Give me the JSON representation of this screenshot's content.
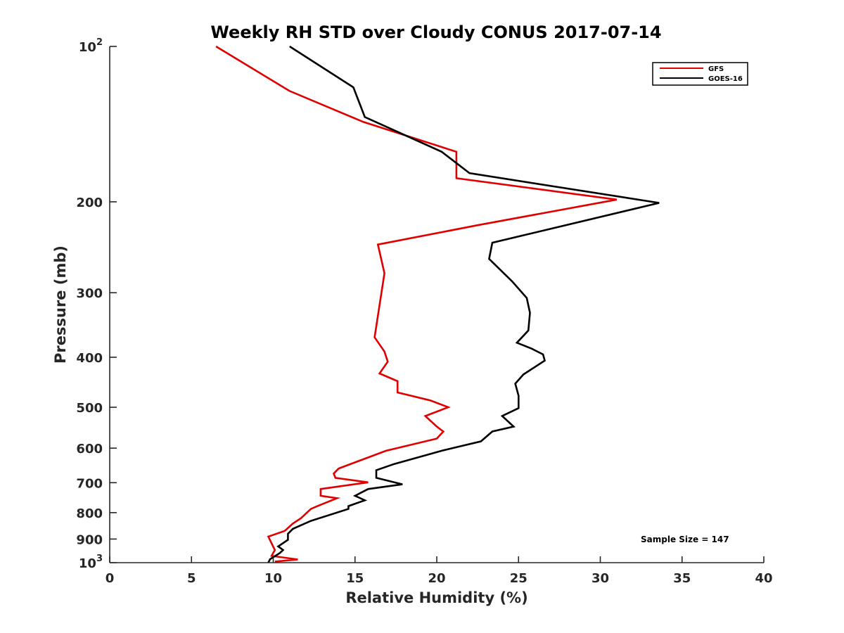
{
  "chart_data": {
    "type": "line",
    "title": "Weekly RH STD over Cloudy CONUS 2017-07-14",
    "xlabel": "Relative Humidity (%)",
    "ylabel": "Pressure (mb)",
    "xlim": [
      0,
      40
    ],
    "ylim": [
      100,
      1000
    ],
    "yscale": "log",
    "y_reversed": true,
    "xticks": [
      0,
      5,
      10,
      15,
      20,
      25,
      30,
      35,
      40
    ],
    "xtick_labels": [
      "0",
      "5",
      "10",
      "15",
      "20",
      "25",
      "30",
      "35",
      "40"
    ],
    "yticks": [
      {
        "value": 100,
        "base": "10",
        "exp": "2"
      },
      {
        "value": 200,
        "label": "200"
      },
      {
        "value": 300,
        "label": "300"
      },
      {
        "value": 400,
        "label": "400"
      },
      {
        "value": 500,
        "label": "500"
      },
      {
        "value": 600,
        "label": "600"
      },
      {
        "value": 700,
        "label": "700"
      },
      {
        "value": 800,
        "label": "800"
      },
      {
        "value": 900,
        "label": "900"
      },
      {
        "value": 1000,
        "base": "10",
        "exp": "3"
      }
    ],
    "grid": false,
    "legend_position": "top-right",
    "annotation": "Sample Size = 147",
    "series": [
      {
        "name": "GFS",
        "color": "#e00000",
        "points": [
          [
            6.5,
            100
          ],
          [
            11.0,
            122
          ],
          [
            15.5,
            140
          ],
          [
            21.2,
            160
          ],
          [
            21.2,
            180
          ],
          [
            31.0,
            198
          ],
          [
            22.5,
            222
          ],
          [
            16.4,
            242
          ],
          [
            16.8,
            275
          ],
          [
            16.2,
            366
          ],
          [
            16.8,
            390
          ],
          [
            17.0,
            408
          ],
          [
            16.5,
            430
          ],
          [
            17.6,
            445
          ],
          [
            17.6,
            468
          ],
          [
            19.6,
            485
          ],
          [
            20.7,
            500
          ],
          [
            19.3,
            520
          ],
          [
            20.0,
            545
          ],
          [
            20.4,
            557
          ],
          [
            20.0,
            575
          ],
          [
            16.9,
            607
          ],
          [
            14.0,
            657
          ],
          [
            13.7,
            672
          ],
          [
            13.8,
            685
          ],
          [
            15.8,
            699
          ],
          [
            12.9,
            720
          ],
          [
            12.9,
            742
          ],
          [
            13.9,
            750
          ],
          [
            12.7,
            777
          ],
          [
            12.3,
            787
          ],
          [
            11.7,
            820
          ],
          [
            11.2,
            840
          ],
          [
            10.7,
            868
          ],
          [
            9.7,
            890
          ],
          [
            10.1,
            945
          ],
          [
            9.9,
            970
          ],
          [
            10.3,
            974
          ],
          [
            11.5,
            986
          ],
          [
            10.1,
            995
          ]
        ]
      },
      {
        "name": "GOES-16",
        "color": "#000000",
        "points": [
          [
            11.0,
            100
          ],
          [
            14.9,
            120
          ],
          [
            15.6,
            137
          ],
          [
            20.3,
            160
          ],
          [
            22.0,
            176
          ],
          [
            33.6,
            201
          ],
          [
            23.4,
            240
          ],
          [
            23.2,
            258
          ],
          [
            24.6,
            285
          ],
          [
            25.5,
            307
          ],
          [
            25.7,
            328
          ],
          [
            25.6,
            355
          ],
          [
            24.9,
            375
          ],
          [
            25.8,
            385
          ],
          [
            26.5,
            395
          ],
          [
            26.6,
            406
          ],
          [
            25.3,
            432
          ],
          [
            24.8,
            450
          ],
          [
            25.0,
            475
          ],
          [
            25.0,
            502
          ],
          [
            24.0,
            520
          ],
          [
            24.7,
            545
          ],
          [
            23.4,
            557
          ],
          [
            22.7,
            582
          ],
          [
            20.4,
            606
          ],
          [
            17.4,
            644
          ],
          [
            16.3,
            662
          ],
          [
            16.3,
            685
          ],
          [
            17.9,
            705
          ],
          [
            15.8,
            720
          ],
          [
            15.0,
            742
          ],
          [
            15.6,
            757
          ],
          [
            14.6,
            777
          ],
          [
            14.6,
            787
          ],
          [
            12.3,
            830
          ],
          [
            11.2,
            860
          ],
          [
            10.9,
            879
          ],
          [
            10.9,
            903
          ],
          [
            10.3,
            930
          ],
          [
            10.6,
            945
          ],
          [
            10.4,
            958
          ],
          [
            9.8,
            985
          ],
          [
            9.7,
            1000
          ]
        ]
      }
    ]
  }
}
